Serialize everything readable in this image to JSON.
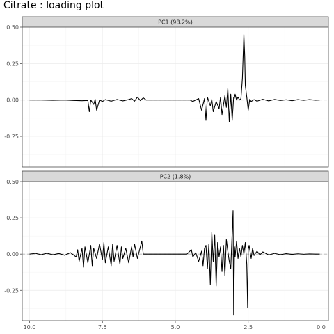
{
  "chart_data": {
    "type": "line",
    "title": "Citrate : loading plot",
    "xlabel": "",
    "ylabel": "",
    "x_reversed": true,
    "xlim": [
      10.25,
      -0.25
    ],
    "x_ticks": [
      10.0,
      7.5,
      5.0,
      2.5,
      0.0
    ],
    "x_tick_labels": [
      "10.0",
      "7.5",
      "5.0",
      "2.5",
      "0.0"
    ],
    "ylim": [
      -0.46,
      0.5
    ],
    "y_ticks": [
      0.5,
      0.25,
      0.0,
      -0.25
    ],
    "y_tick_labels": [
      "0.50",
      "0.25",
      "0.00",
      "-0.25"
    ],
    "grid": true,
    "reference_line": {
      "y": 0.0,
      "style": "dashed",
      "color": "#b3b3b3"
    },
    "colors": {
      "line": "#000000",
      "strip_fill": "#d9d9d9",
      "panel_border": "#333333",
      "grid": "#ebebeb"
    },
    "facets": [
      {
        "label": "PC1 (98.2%)",
        "series": [
          {
            "x": [
              10.0,
              9.6,
              9.2,
              8.8,
              8.5,
              8.2,
              8.0,
              7.95,
              7.9,
              7.8,
              7.75,
              7.7,
              7.6,
              7.5,
              7.4,
              7.2,
              7.0,
              6.8,
              6.6,
              6.5,
              6.4,
              6.3,
              6.2,
              6.1,
              6.0,
              5.6,
              5.2,
              4.8,
              4.5,
              4.4,
              4.2,
              4.1,
              4.0,
              3.95,
              3.9,
              3.8,
              3.75,
              3.7,
              3.6,
              3.5,
              3.45,
              3.4,
              3.3,
              3.25,
              3.2,
              3.15,
              3.1,
              3.05,
              3.0,
              2.98,
              2.95,
              2.9,
              2.85,
              2.8,
              2.75,
              2.7,
              2.65,
              2.62,
              2.6,
              2.55,
              2.5,
              2.45,
              2.4,
              2.3,
              2.2,
              2.0,
              1.8,
              1.6,
              1.4,
              1.2,
              1.0,
              0.8,
              0.6,
              0.4,
              0.2,
              0.05
            ],
            "y": [
              0.0,
              0.0,
              -0.002,
              0.0,
              -0.003,
              -0.005,
              -0.003,
              -0.08,
              0.0,
              -0.03,
              0.005,
              -0.07,
              0.0,
              -0.01,
              0.003,
              -0.008,
              0.004,
              -0.006,
              0.003,
              0.01,
              -0.008,
              0.02,
              -0.004,
              0.015,
              0.0,
              0.0,
              0.0,
              0.0,
              0.0,
              -0.01,
              0.01,
              -0.07,
              0.01,
              -0.14,
              0.02,
              -0.04,
              0.005,
              -0.08,
              -0.01,
              -0.06,
              0.02,
              -0.1,
              0.03,
              -0.05,
              0.08,
              -0.15,
              0.04,
              -0.14,
              0.02,
              0.01,
              0.04,
              0.0,
              0.02,
              0.0,
              0.01,
              0.15,
              0.45,
              0.3,
              0.1,
              0.02,
              -0.07,
              0.005,
              -0.01,
              0.003,
              -0.008,
              0.005,
              -0.006,
              0.004,
              -0.003,
              0.002,
              -0.005,
              0.003,
              -0.002,
              0.003,
              -0.001,
              0.0
            ]
          }
        ]
      },
      {
        "label": "PC2 (1.8%)",
        "series": [
          {
            "x": [
              10.0,
              9.8,
              9.6,
              9.4,
              9.2,
              9.0,
              8.8,
              8.6,
              8.4,
              8.35,
              8.3,
              8.2,
              8.15,
              8.1,
              8.0,
              7.9,
              7.85,
              7.8,
              7.7,
              7.6,
              7.5,
              7.45,
              7.4,
              7.3,
              7.2,
              7.15,
              7.1,
              7.0,
              6.9,
              6.85,
              6.8,
              6.7,
              6.6,
              6.5,
              6.45,
              6.4,
              6.3,
              6.2,
              6.15,
              6.1,
              6.05,
              6.0,
              5.8,
              5.4,
              5.0,
              4.6,
              4.45,
              4.4,
              4.3,
              4.2,
              4.1,
              4.05,
              4.0,
              3.95,
              3.9,
              3.85,
              3.8,
              3.75,
              3.7,
              3.65,
              3.6,
              3.55,
              3.5,
              3.45,
              3.4,
              3.35,
              3.3,
              3.25,
              3.2,
              3.15,
              3.1,
              3.05,
              3.02,
              3.0,
              2.97,
              2.95,
              2.9,
              2.85,
              2.8,
              2.75,
              2.7,
              2.65,
              2.6,
              2.55,
              2.52,
              2.5,
              2.47,
              2.4,
              2.35,
              2.3,
              2.2,
              2.1,
              2.0,
              1.8,
              1.6,
              1.4,
              1.2,
              1.0,
              0.8,
              0.6,
              0.4,
              0.2,
              0.05
            ],
            "y": [
              0.0,
              0.005,
              -0.004,
              0.006,
              -0.005,
              0.004,
              -0.008,
              0.01,
              -0.02,
              0.03,
              -0.05,
              0.04,
              -0.09,
              0.05,
              -0.06,
              0.06,
              -0.08,
              0.04,
              -0.03,
              0.07,
              -0.04,
              0.08,
              -0.06,
              0.05,
              -0.08,
              0.07,
              -0.05,
              0.06,
              -0.07,
              0.05,
              -0.03,
              0.04,
              -0.06,
              0.05,
              -0.02,
              0.07,
              -0.03,
              0.05,
              0.09,
              0.0,
              0.0,
              0.0,
              0.0,
              0.0,
              0.0,
              0.0,
              0.03,
              -0.02,
              0.01,
              -0.05,
              0.02,
              -0.08,
              0.04,
              0.06,
              -0.1,
              0.07,
              -0.21,
              0.15,
              -0.05,
              0.13,
              -0.22,
              0.08,
              -0.02,
              0.05,
              -0.12,
              0.06,
              -0.15,
              0.1,
              0.02,
              -0.05,
              -0.1,
              0.15,
              0.3,
              -0.42,
              0.05,
              -0.02,
              0.09,
              -0.03,
              0.04,
              -0.02,
              0.06,
              0.0,
              0.08,
              -0.07,
              -0.37,
              0.03,
              0.06,
              -0.03,
              0.04,
              -0.01,
              0.02,
              -0.005,
              0.015,
              -0.006,
              0.005,
              -0.004,
              0.003,
              -0.002,
              0.002,
              -0.001,
              0.001,
              0.0,
              0.0
            ]
          }
        ]
      }
    ]
  }
}
